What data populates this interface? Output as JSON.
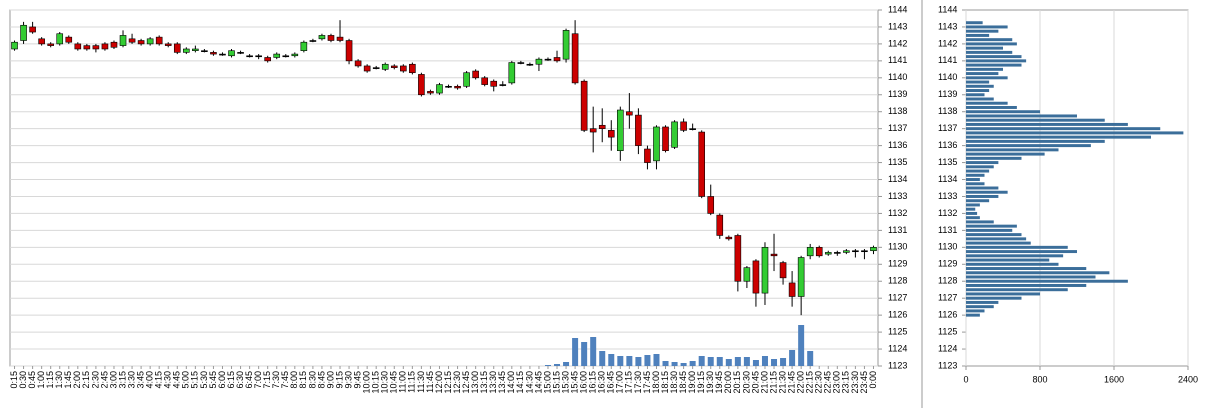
{
  "chart_data": [
    {
      "type": "candlestick",
      "categories": [
        "0:15",
        "0:30",
        "0:45",
        "1:00",
        "1:15",
        "1:30",
        "1:45",
        "2:00",
        "2:15",
        "2:30",
        "2:45",
        "3:00",
        "3:15",
        "3:30",
        "3:45",
        "4:00",
        "4:15",
        "4:30",
        "4:45",
        "5:00",
        "5:15",
        "5:30",
        "5:45",
        "6:00",
        "6:15",
        "6:30",
        "6:45",
        "7:00",
        "7:15",
        "7:30",
        "7:45",
        "8:00",
        "8:15",
        "8:30",
        "8:45",
        "9:00",
        "9:15",
        "9:30",
        "9:45",
        "10:00",
        "10:15",
        "10:30",
        "10:45",
        "11:00",
        "11:15",
        "11:30",
        "11:45",
        "12:00",
        "12:15",
        "12:30",
        "12:45",
        "13:00",
        "13:15",
        "13:30",
        "13:45",
        "14:00",
        "14:15",
        "14:30",
        "14:45",
        "15:00",
        "15:15",
        "15:30",
        "15:45",
        "16:00",
        "16:15",
        "16:30",
        "16:45",
        "17:00",
        "17:15",
        "17:30",
        "17:45",
        "18:00",
        "18:15",
        "18:30",
        "18:45",
        "19:00",
        "19:15",
        "19:30",
        "19:45",
        "20:00",
        "20:15",
        "20:30",
        "20:45",
        "21:00",
        "21:15",
        "21:30",
        "21:45",
        "22:00",
        "22:15",
        "22:30",
        "22:45",
        "23:00",
        "23:15",
        "23:30",
        "23:45",
        "0:00"
      ],
      "open": [
        1141.7,
        1142.2,
        1143.0,
        1142.3,
        1142.0,
        1142.0,
        1142.4,
        1142.0,
        1141.9,
        1141.9,
        1142.0,
        1142.1,
        1141.9,
        1142.3,
        1142.2,
        1142.0,
        1142.4,
        1142.0,
        1142.0,
        1141.5,
        1141.6,
        1141.6,
        1141.5,
        1141.4,
        1141.3,
        1141.5,
        1141.3,
        1141.3,
        1141.2,
        1141.2,
        1141.3,
        1141.3,
        1141.6,
        1142.2,
        1142.3,
        1142.5,
        1142.4,
        1142.2,
        1141.0,
        1140.7,
        1140.6,
        1140.5,
        1140.7,
        1140.7,
        1140.8,
        1140.2,
        1139.2,
        1139.1,
        1139.5,
        1139.5,
        1139.5,
        1140.4,
        1140.0,
        1139.8,
        1139.6,
        1139.7,
        1140.9,
        1140.8,
        1140.8,
        1141.1,
        1141.2,
        1141.1,
        1142.6,
        1139.8,
        1137.0,
        1137.2,
        1136.9,
        1135.7,
        1138.0,
        1137.8,
        1135.8,
        1135.1,
        1137.1,
        1135.9,
        1137.4,
        1137.0,
        1136.8,
        1133.0,
        1131.9,
        1130.6,
        1130.7,
        1128.0,
        1129.2,
        1127.3,
        1129.6,
        1129.1,
        1127.9,
        1127.1,
        1129.5,
        1130.0,
        1129.6,
        1129.7,
        1129.7,
        1129.8,
        1129.8,
        1129.8
      ],
      "high": [
        1142.2,
        1143.3,
        1143.3,
        1142.4,
        1142.1,
        1142.7,
        1142.5,
        1142.1,
        1142.0,
        1142.0,
        1142.1,
        1142.2,
        1142.8,
        1142.6,
        1142.3,
        1142.4,
        1142.5,
        1142.1,
        1142.1,
        1141.8,
        1141.9,
        1141.7,
        1141.6,
        1141.5,
        1141.7,
        1141.6,
        1141.4,
        1141.4,
        1141.3,
        1141.5,
        1141.4,
        1141.5,
        1142.2,
        1142.3,
        1142.6,
        1142.6,
        1143.4,
        1142.3,
        1141.1,
        1140.8,
        1140.7,
        1140.9,
        1140.8,
        1140.8,
        1140.9,
        1140.3,
        1139.3,
        1139.7,
        1139.6,
        1139.6,
        1140.4,
        1140.5,
        1140.1,
        1139.9,
        1139.8,
        1141.0,
        1141.0,
        1140.9,
        1141.2,
        1141.2,
        1141.6,
        1142.9,
        1143.4,
        1139.9,
        1138.3,
        1138.2,
        1137.5,
        1138.3,
        1139.1,
        1138.2,
        1136.0,
        1137.2,
        1137.2,
        1137.5,
        1137.6,
        1137.3,
        1136.9,
        1133.7,
        1132.0,
        1130.7,
        1130.8,
        1128.9,
        1129.3,
        1130.3,
        1130.8,
        1129.2,
        1128.6,
        1129.5,
        1130.2,
        1130.1,
        1129.8,
        1129.8,
        1129.9,
        1129.9,
        1129.9,
        1130.1
      ],
      "low": [
        1141.6,
        1142.0,
        1142.6,
        1141.9,
        1141.8,
        1141.9,
        1142.0,
        1141.6,
        1141.6,
        1141.5,
        1141.6,
        1141.7,
        1141.8,
        1142.0,
        1141.9,
        1141.9,
        1141.9,
        1141.8,
        1141.4,
        1141.4,
        1141.5,
        1141.5,
        1141.3,
        1141.3,
        1141.2,
        1141.4,
        1141.2,
        1141.1,
        1140.9,
        1141.1,
        1141.2,
        1141.2,
        1141.5,
        1142.1,
        1142.2,
        1142.1,
        1142.1,
        1140.8,
        1140.6,
        1140.3,
        1140.5,
        1140.4,
        1140.5,
        1140.3,
        1140.2,
        1138.9,
        1139.0,
        1139.0,
        1139.4,
        1139.3,
        1139.4,
        1139.9,
        1139.5,
        1139.2,
        1139.5,
        1139.6,
        1140.8,
        1140.7,
        1140.4,
        1141.0,
        1140.9,
        1140.9,
        1139.6,
        1136.8,
        1135.6,
        1136.2,
        1135.7,
        1135.1,
        1137.0,
        1135.5,
        1134.6,
        1134.6,
        1135.6,
        1135.8,
        1136.8,
        1136.9,
        1132.9,
        1131.9,
        1130.5,
        1130.4,
        1127.4,
        1127.6,
        1126.5,
        1126.6,
        1128.6,
        1127.8,
        1126.5,
        1126.0,
        1129.3,
        1129.4,
        1129.5,
        1129.5,
        1129.6,
        1129.4,
        1129.3,
        1129.6
      ],
      "close": [
        1142.1,
        1143.1,
        1142.7,
        1142.0,
        1141.9,
        1142.6,
        1142.1,
        1141.7,
        1141.7,
        1141.7,
        1141.7,
        1141.8,
        1142.5,
        1142.1,
        1142.0,
        1142.3,
        1142.0,
        1141.9,
        1141.5,
        1141.7,
        1141.7,
        1141.6,
        1141.4,
        1141.4,
        1141.6,
        1141.5,
        1141.3,
        1141.3,
        1141.0,
        1141.4,
        1141.3,
        1141.4,
        1142.1,
        1142.2,
        1142.5,
        1142.2,
        1142.2,
        1141.0,
        1140.7,
        1140.4,
        1140.6,
        1140.8,
        1140.6,
        1140.4,
        1140.3,
        1139.0,
        1139.1,
        1139.6,
        1139.5,
        1139.4,
        1140.3,
        1140.0,
        1139.6,
        1139.5,
        1139.6,
        1140.9,
        1140.9,
        1140.8,
        1141.1,
        1141.1,
        1141.0,
        1142.8,
        1139.7,
        1136.9,
        1136.8,
        1137.0,
        1136.5,
        1138.1,
        1137.8,
        1136.0,
        1135.0,
        1137.1,
        1135.7,
        1137.4,
        1136.9,
        1137.0,
        1133.0,
        1132.0,
        1130.7,
        1130.5,
        1128.0,
        1128.8,
        1127.3,
        1130.0,
        1129.5,
        1128.2,
        1127.1,
        1129.4,
        1130.0,
        1129.5,
        1129.7,
        1129.7,
        1129.8,
        1129.8,
        1129.8,
        1130.0
      ],
      "volume": [
        0,
        0,
        0,
        0,
        0,
        0,
        0,
        0,
        0,
        0,
        0,
        0,
        0,
        0,
        0,
        0,
        0,
        0,
        0,
        0,
        0,
        0,
        0,
        0,
        0,
        0,
        0,
        0,
        0,
        0,
        0,
        0,
        0,
        0,
        0,
        0,
        0,
        0,
        0,
        0,
        0,
        0,
        0,
        0,
        0,
        0,
        0,
        0,
        0,
        0,
        0,
        0,
        0,
        0,
        0,
        0,
        0,
        0,
        0,
        1,
        2,
        4,
        28,
        24,
        29,
        15,
        12,
        10,
        10,
        9,
        11,
        12,
        5,
        4,
        3,
        5,
        10,
        9,
        9,
        7,
        9,
        9,
        6,
        10,
        7,
        8,
        16,
        41,
        15,
        0,
        0,
        0,
        0,
        0,
        0,
        0
      ],
      "up_color": "#33cc33",
      "down_color": "#cc0000",
      "volume_color": "#4f81bd",
      "ylim": [
        1123,
        1144
      ],
      "yticks": [
        1123,
        1124,
        1125,
        1126,
        1127,
        1128,
        1129,
        1130,
        1131,
        1132,
        1133,
        1134,
        1135,
        1136,
        1137,
        1138,
        1139,
        1140,
        1141,
        1142,
        1143,
        1144
      ],
      "grid": true
    },
    {
      "type": "barh",
      "y": [
        1143.25,
        1143.0,
        1142.75,
        1142.5,
        1142.25,
        1142.0,
        1141.75,
        1141.5,
        1141.25,
        1141.0,
        1140.75,
        1140.5,
        1140.25,
        1140.0,
        1139.75,
        1139.5,
        1139.25,
        1139.0,
        1138.75,
        1138.5,
        1138.25,
        1138.0,
        1137.75,
        1137.5,
        1137.25,
        1137.0,
        1136.75,
        1136.5,
        1136.25,
        1136.0,
        1135.75,
        1135.5,
        1135.25,
        1135.0,
        1134.75,
        1134.5,
        1134.25,
        1134.0,
        1133.75,
        1133.5,
        1133.25,
        1133.0,
        1132.75,
        1132.5,
        1132.25,
        1132.0,
        1131.75,
        1131.5,
        1131.25,
        1131.0,
        1130.75,
        1130.5,
        1130.25,
        1130.0,
        1129.75,
        1129.5,
        1129.25,
        1129.0,
        1128.75,
        1128.5,
        1128.25,
        1128.0,
        1127.75,
        1127.5,
        1127.25,
        1127.0,
        1126.75,
        1126.5,
        1126.25,
        1126.0
      ],
      "values": [
        180,
        450,
        350,
        250,
        500,
        550,
        400,
        500,
        600,
        650,
        600,
        400,
        350,
        450,
        250,
        300,
        250,
        200,
        300,
        450,
        550,
        800,
        1200,
        1500,
        1750,
        2100,
        2350,
        2000,
        1500,
        1350,
        1000,
        850,
        600,
        350,
        300,
        250,
        200,
        150,
        200,
        350,
        450,
        350,
        250,
        150,
        100,
        120,
        150,
        300,
        550,
        500,
        600,
        650,
        700,
        1100,
        1200,
        1050,
        900,
        1000,
        1300,
        1550,
        1400,
        1750,
        1300,
        1100,
        800,
        600,
        350,
        300,
        200,
        150
      ],
      "color": "#3b6e9a",
      "xlim": [
        0,
        2400
      ],
      "xticks": [
        0,
        800,
        1600,
        2400
      ],
      "ylim": [
        1123,
        1144
      ],
      "yticks": [
        1123,
        1124,
        1125,
        1126,
        1127,
        1128,
        1129,
        1130,
        1131,
        1132,
        1133,
        1134,
        1135,
        1136,
        1137,
        1138,
        1139,
        1140,
        1141,
        1142,
        1143,
        1144
      ],
      "grid": true
    }
  ]
}
